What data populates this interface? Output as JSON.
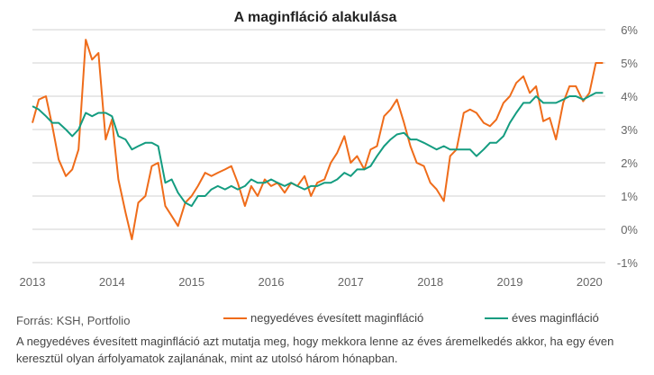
{
  "chart_data": {
    "type": "line",
    "title": "A maginfláció alakulása",
    "x_ticks": [
      "2013",
      "2014",
      "2015",
      "2016",
      "2017",
      "2018",
      "2019",
      "2020"
    ],
    "y_ticks": [
      "6%",
      "5%",
      "4%",
      "3%",
      "2%",
      "1%",
      "0%",
      "-1%"
    ],
    "ylim": [
      -1,
      6
    ],
    "xlim": [
      2013.0,
      2020.2
    ],
    "grid": "horizontal",
    "legend_position": "bottom",
    "series": [
      {
        "name": "negyedéves évesített maginfláció",
        "color": "#ef6c1a",
        "x": [
          2013.0,
          2013.08,
          2013.17,
          2013.25,
          2013.33,
          2013.42,
          2013.5,
          2013.58,
          2013.67,
          2013.75,
          2013.83,
          2013.92,
          2014.0,
          2014.08,
          2014.17,
          2014.25,
          2014.33,
          2014.42,
          2014.5,
          2014.58,
          2014.67,
          2014.75,
          2014.83,
          2014.92,
          2015.0,
          2015.08,
          2015.17,
          2015.25,
          2015.33,
          2015.42,
          2015.5,
          2015.58,
          2015.67,
          2015.75,
          2015.83,
          2015.92,
          2016.0,
          2016.08,
          2016.17,
          2016.25,
          2016.33,
          2016.42,
          2016.5,
          2016.58,
          2016.67,
          2016.75,
          2016.83,
          2016.92,
          2017.0,
          2017.08,
          2017.17,
          2017.25,
          2017.33,
          2017.42,
          2017.5,
          2017.58,
          2017.67,
          2017.75,
          2017.83,
          2017.92,
          2018.0,
          2018.08,
          2018.17,
          2018.25,
          2018.33,
          2018.42,
          2018.5,
          2018.58,
          2018.67,
          2018.75,
          2018.83,
          2018.92,
          2019.0,
          2019.08,
          2019.17,
          2019.25,
          2019.33,
          2019.42,
          2019.5,
          2019.58,
          2019.67,
          2019.75,
          2019.83,
          2019.92,
          2020.0,
          2020.08,
          2020.17
        ],
        "values": [
          3.2,
          3.9,
          4.0,
          3.1,
          2.1,
          1.6,
          1.8,
          2.4,
          5.7,
          5.1,
          5.3,
          2.7,
          3.3,
          1.5,
          0.5,
          -0.3,
          0.8,
          1.0,
          1.9,
          2.0,
          0.7,
          0.4,
          0.1,
          0.8,
          1.0,
          1.3,
          1.7,
          1.6,
          1.7,
          1.8,
          1.9,
          1.4,
          0.7,
          1.3,
          1.0,
          1.5,
          1.3,
          1.4,
          1.1,
          1.4,
          1.3,
          1.6,
          1.0,
          1.4,
          1.5,
          2.0,
          2.3,
          2.8,
          2.0,
          2.2,
          1.8,
          2.4,
          2.5,
          3.4,
          3.6,
          3.9,
          3.2,
          2.5,
          2.0,
          1.9,
          1.4,
          1.2,
          0.85,
          2.2,
          2.4,
          3.5,
          3.6,
          3.5,
          3.2,
          3.1,
          3.3,
          3.8,
          4.0,
          4.4,
          4.6,
          4.1,
          4.3,
          3.25,
          3.35,
          2.7,
          3.8,
          4.3,
          4.3,
          3.85,
          4.1,
          5.0,
          5.0
        ]
      },
      {
        "name": "éves maginfláció",
        "color": "#149c80",
        "x": [
          2013.0,
          2013.08,
          2013.17,
          2013.25,
          2013.33,
          2013.42,
          2013.5,
          2013.58,
          2013.67,
          2013.75,
          2013.83,
          2013.92,
          2014.0,
          2014.08,
          2014.17,
          2014.25,
          2014.33,
          2014.42,
          2014.5,
          2014.58,
          2014.67,
          2014.75,
          2014.83,
          2014.92,
          2015.0,
          2015.08,
          2015.17,
          2015.25,
          2015.33,
          2015.42,
          2015.5,
          2015.58,
          2015.67,
          2015.75,
          2015.83,
          2015.92,
          2016.0,
          2016.08,
          2016.17,
          2016.25,
          2016.33,
          2016.42,
          2016.5,
          2016.58,
          2016.67,
          2016.75,
          2016.83,
          2016.92,
          2017.0,
          2017.08,
          2017.17,
          2017.25,
          2017.33,
          2017.42,
          2017.5,
          2017.58,
          2017.67,
          2017.75,
          2017.83,
          2017.92,
          2018.0,
          2018.08,
          2018.17,
          2018.25,
          2018.33,
          2018.42,
          2018.5,
          2018.58,
          2018.67,
          2018.75,
          2018.83,
          2018.92,
          2019.0,
          2019.08,
          2019.17,
          2019.25,
          2019.33,
          2019.42,
          2019.5,
          2019.58,
          2019.67,
          2019.75,
          2019.83,
          2019.92,
          2020.0,
          2020.08,
          2020.17
        ],
        "values": [
          3.7,
          3.6,
          3.4,
          3.2,
          3.2,
          3.0,
          2.8,
          3.0,
          3.5,
          3.4,
          3.5,
          3.5,
          3.4,
          2.8,
          2.7,
          2.4,
          2.5,
          2.6,
          2.6,
          2.5,
          1.4,
          1.5,
          1.1,
          0.8,
          0.7,
          1.0,
          1.0,
          1.2,
          1.3,
          1.2,
          1.3,
          1.2,
          1.3,
          1.5,
          1.4,
          1.4,
          1.5,
          1.4,
          1.3,
          1.4,
          1.3,
          1.2,
          1.3,
          1.3,
          1.4,
          1.4,
          1.5,
          1.7,
          1.6,
          1.8,
          1.8,
          1.9,
          2.2,
          2.5,
          2.7,
          2.85,
          2.9,
          2.7,
          2.7,
          2.6,
          2.5,
          2.4,
          2.5,
          2.4,
          2.4,
          2.4,
          2.4,
          2.2,
          2.4,
          2.6,
          2.6,
          2.8,
          3.2,
          3.5,
          3.8,
          3.8,
          4.0,
          3.8,
          3.8,
          3.8,
          3.9,
          4.0,
          4.0,
          3.9,
          4.0,
          4.1,
          4.1
        ]
      }
    ]
  },
  "footer": {
    "source": "Forrás: KSH, Portfolio",
    "note": "A negyedéves évesített maginfláció azt mutatja meg, hogy mekkora lenne az éves áremelkedés akkor, ha egy éven keresztül olyan árfolyamatok zajlanának, mint az utolsó három hónapban."
  }
}
